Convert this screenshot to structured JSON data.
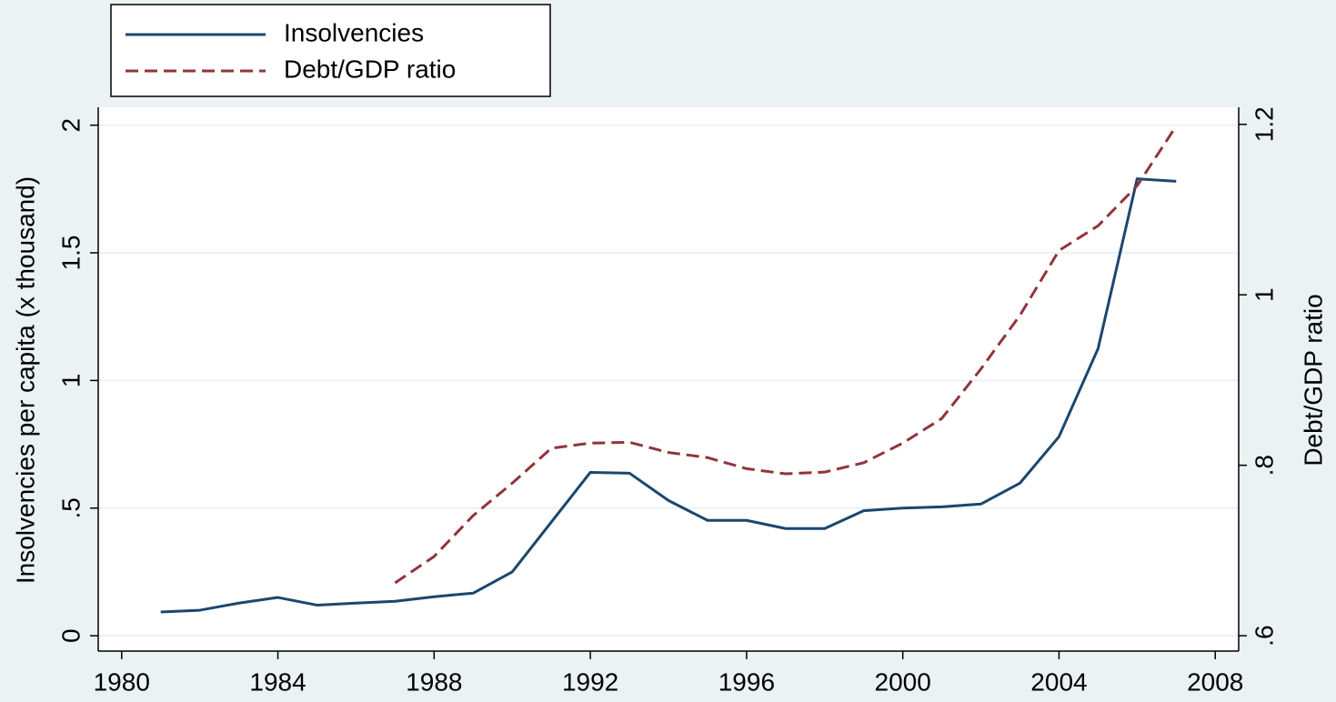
{
  "chart_data": {
    "type": "line",
    "x": [
      1981,
      1982,
      1983,
      1984,
      1985,
      1986,
      1987,
      1988,
      1989,
      1990,
      1991,
      1992,
      1993,
      1994,
      1995,
      1996,
      1997,
      1998,
      1999,
      2000,
      2001,
      2002,
      2003,
      2004,
      2005,
      2006,
      2007
    ],
    "series": [
      {
        "name": "Insolvencies",
        "color": "#1a476f",
        "dash": false,
        "values": [
          0.093,
          0.1,
          0.128,
          0.15,
          0.12,
          0.128,
          0.135,
          0.153,
          0.167,
          0.25,
          0.445,
          0.64,
          0.637,
          0.53,
          0.452,
          0.452,
          0.42,
          0.42,
          0.49,
          0.5,
          0.505,
          0.516,
          0.598,
          0.78,
          1.125,
          1.79,
          1.78
        ]
      },
      {
        "name": "Debt/GDP ratio",
        "color": "#90353b",
        "dash": true,
        "axis": "y2",
        "values": [
          null,
          null,
          null,
          null,
          null,
          null,
          0.662,
          0.693,
          0.741,
          0.779,
          0.82,
          0.826,
          0.827,
          0.815,
          0.809,
          0.796,
          0.79,
          0.792,
          0.803,
          0.826,
          0.855,
          0.913,
          0.976,
          1.052,
          1.081,
          1.128,
          1.198
        ]
      }
    ],
    "y_label": "Insolvencies per capita (x thousand)",
    "y2_label": "Debt/GDP ratio",
    "xlim": [
      1979.4,
      2008.6
    ],
    "xticks": [
      1980,
      1984,
      1988,
      1992,
      1996,
      2000,
      2004,
      2008
    ],
    "ylim": [
      -0.06,
      2.07
    ],
    "yticks": [
      0,
      {
        "value": 0.5,
        "label": ".5"
      },
      1,
      1.5,
      2
    ],
    "y2lim": [
      0.582,
      1.22
    ],
    "y2ticks": [
      {
        "value": 0.6,
        "label": ".6"
      },
      {
        "value": 0.8,
        "label": ".8"
      },
      1,
      1.2
    ],
    "grid": true,
    "legend": "top-left"
  }
}
